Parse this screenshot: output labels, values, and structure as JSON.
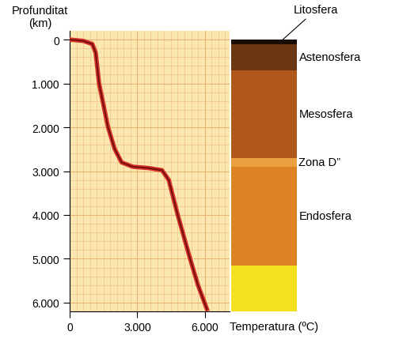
{
  "chart_data": {
    "type": "line",
    "x_label": "Temperatura (ºC)",
    "y_label": "Profunditat\n(km)",
    "series": [
      {
        "color": "#7a1010",
        "x": [
          0,
          600,
          1000,
          1150,
          1300,
          1700,
          2000,
          2300,
          2800,
          3500,
          4100,
          4400,
          4800,
          5350,
          5700,
          6100
        ],
        "values": [
          0,
          30,
          100,
          300,
          1000,
          2000,
          2500,
          2800,
          2900,
          2930,
          2980,
          3200,
          4000,
          5000,
          5600,
          6150
        ]
      }
    ],
    "xlim": [
      0,
      7100
    ],
    "ylim": [
      6200,
      -200
    ],
    "xticks": [
      0,
      {
        "value": 3000,
        "label": "3.000"
      },
      {
        "value": 6000,
        "label": "6.000"
      }
    ],
    "yticks": [
      0,
      {
        "value": 1000,
        "label": "1.000"
      },
      {
        "value": 2000,
        "label": "2.000"
      },
      {
        "value": 3000,
        "label": "3.000"
      },
      {
        "value": 4000,
        "label": "4.000"
      },
      {
        "value": 5000,
        "label": "5.000"
      },
      {
        "value": 6000,
        "label": "6.000"
      }
    ],
    "grid": true,
    "layers": [
      {
        "label": "Litosfera",
        "top": 0,
        "bottom": 100,
        "color": "#1a0c06"
      },
      {
        "label": "Astenosfera",
        "top": 100,
        "bottom": 700,
        "color": "#6b3612"
      },
      {
        "label": "Mesosfera",
        "top": 700,
        "bottom": 2700,
        "color": "#b0581c"
      },
      {
        "label": "Zona D”",
        "top": 2700,
        "bottom": 2900,
        "color": "#eba040"
      },
      {
        "label": "Endosfera",
        "top": 2900,
        "bottom": 5150,
        "color": "#de8424"
      },
      {
        "label": null,
        "top": 5150,
        "bottom": 6200,
        "color": "#f3e01e"
      }
    ]
  }
}
